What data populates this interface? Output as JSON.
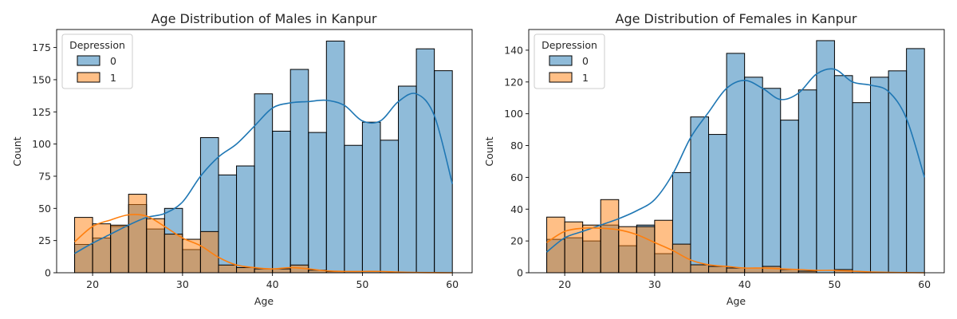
{
  "chart_data": [
    {
      "type": "histogram",
      "title": "Age Distribution of Males in Kanpur",
      "xlabel": "Age",
      "ylabel": "Count",
      "xlim": [
        16,
        62.2
      ],
      "ylim": [
        0,
        189
      ],
      "xticks": [
        20,
        30,
        40,
        50,
        60
      ],
      "yticks": [
        0,
        25,
        50,
        75,
        100,
        125,
        150,
        175
      ],
      "bin_edges": [
        18,
        20,
        22,
        24,
        26,
        28,
        30,
        32,
        34,
        36,
        38,
        40,
        42,
        44,
        46,
        48,
        50,
        52,
        54,
        56,
        58,
        60
      ],
      "legend": {
        "title": "Depression",
        "position": "upper left"
      },
      "series": [
        {
          "name": "0",
          "color": "#1f77b4",
          "values": [
            22,
            27,
            36,
            53,
            34,
            50,
            18,
            105,
            76,
            83,
            139,
            110,
            158,
            109,
            180,
            99,
            117,
            103,
            145,
            174,
            157
          ],
          "kde": [
            [
              18,
              15
            ],
            [
              20,
              23
            ],
            [
              22,
              30
            ],
            [
              24,
              37
            ],
            [
              26,
              43
            ],
            [
              28,
              46
            ],
            [
              30,
              55
            ],
            [
              32,
              75
            ],
            [
              34,
              90
            ],
            [
              36,
              100
            ],
            [
              38,
              114
            ],
            [
              40,
              128
            ],
            [
              42,
              132
            ],
            [
              44,
              133
            ],
            [
              46,
              134
            ],
            [
              48,
              130
            ],
            [
              50,
              118
            ],
            [
              52,
              118
            ],
            [
              54,
              133
            ],
            [
              56,
              139
            ],
            [
              58,
              122
            ],
            [
              60,
              69
            ]
          ]
        },
        {
          "name": "1",
          "color": "#ff7f0e",
          "values": [
            43,
            38,
            37,
            61,
            42,
            30,
            26,
            32,
            6,
            4,
            3,
            3,
            6,
            2,
            1,
            0,
            0,
            0,
            0,
            0,
            0
          ],
          "kde": [
            [
              18,
              24
            ],
            [
              20,
              36
            ],
            [
              22,
              41
            ],
            [
              24,
              45
            ],
            [
              26,
              44
            ],
            [
              28,
              36
            ],
            [
              30,
              27
            ],
            [
              32,
              21
            ],
            [
              34,
              12
            ],
            [
              36,
              6
            ],
            [
              38,
              4
            ],
            [
              40,
              3
            ],
            [
              42,
              4
            ],
            [
              44,
              3
            ],
            [
              46,
              1.5
            ],
            [
              48,
              1
            ],
            [
              50,
              1
            ],
            [
              52,
              1
            ],
            [
              54,
              0.5
            ],
            [
              56,
              0.2
            ],
            [
              58,
              0.1
            ],
            [
              60,
              0
            ]
          ]
        }
      ]
    },
    {
      "type": "histogram",
      "title": "Age Distribution of Females in Kanpur",
      "xlabel": "Age",
      "ylabel": "Count",
      "xlim": [
        16,
        62.2
      ],
      "ylim": [
        0,
        153
      ],
      "xticks": [
        20,
        30,
        40,
        50,
        60
      ],
      "yticks": [
        0,
        20,
        40,
        60,
        80,
        100,
        120,
        140
      ],
      "bin_edges": [
        18,
        20,
        22,
        24,
        26,
        28,
        30,
        32,
        34,
        36,
        38,
        40,
        42,
        44,
        46,
        48,
        50,
        52,
        54,
        56,
        58,
        60
      ],
      "legend": {
        "title": "Depression",
        "position": "upper left"
      },
      "series": [
        {
          "name": "0",
          "color": "#1f77b4",
          "values": [
            21,
            22,
            20,
            30,
            17,
            30,
            12,
            63,
            98,
            87,
            138,
            123,
            116,
            96,
            115,
            146,
            124,
            107,
            123,
            127,
            141
          ],
          "kde": [
            [
              18,
              13
            ],
            [
              20,
              22
            ],
            [
              22,
              26
            ],
            [
              24,
              30
            ],
            [
              26,
              34
            ],
            [
              28,
              39
            ],
            [
              30,
              46
            ],
            [
              32,
              62
            ],
            [
              34,
              85
            ],
            [
              36,
              101
            ],
            [
              38,
              116
            ],
            [
              40,
              121
            ],
            [
              42,
              116
            ],
            [
              44,
              109
            ],
            [
              46,
              113
            ],
            [
              48,
              125
            ],
            [
              50,
              128
            ],
            [
              52,
              120
            ],
            [
              54,
              118
            ],
            [
              56,
              114
            ],
            [
              58,
              97
            ],
            [
              60,
              60
            ]
          ]
        },
        {
          "name": "1",
          "color": "#ff7f0e",
          "values": [
            35,
            32,
            30,
            46,
            29,
            29,
            33,
            18,
            5,
            4,
            3,
            3,
            4,
            2,
            1,
            0,
            2,
            0,
            0,
            0,
            0
          ],
          "kde": [
            [
              18,
              19
            ],
            [
              20,
              26
            ],
            [
              22,
              28
            ],
            [
              24,
              28
            ],
            [
              26,
              27
            ],
            [
              28,
              24
            ],
            [
              30,
              19
            ],
            [
              32,
              14
            ],
            [
              34,
              8
            ],
            [
              36,
              5
            ],
            [
              38,
              4
            ],
            [
              40,
              3
            ],
            [
              42,
              3
            ],
            [
              44,
              2.5
            ],
            [
              46,
              2
            ],
            [
              48,
              1.5
            ],
            [
              50,
              1.5
            ],
            [
              52,
              1
            ],
            [
              54,
              0.5
            ],
            [
              56,
              0.2
            ],
            [
              58,
              0.1
            ],
            [
              60,
              0
            ]
          ]
        }
      ]
    }
  ]
}
